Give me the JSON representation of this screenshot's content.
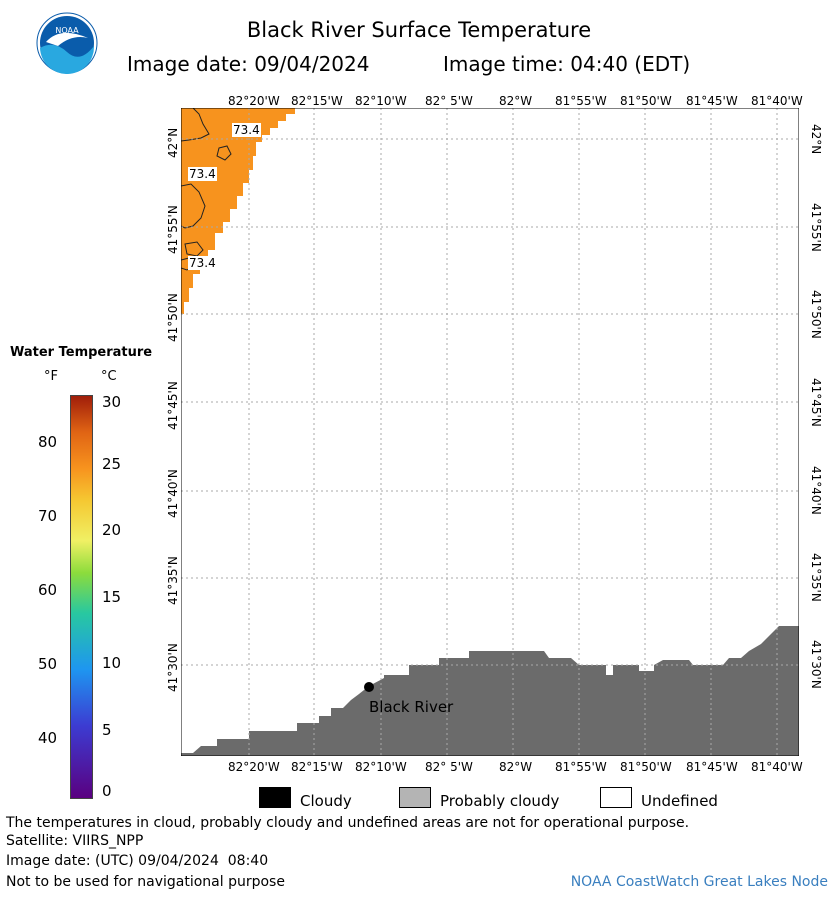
{
  "header": {
    "title": "Black River Surface Temperature",
    "image_date_label": "Image date: 09/04/2024",
    "image_time_label": "Image time: 04:40 (EDT)"
  },
  "logo": {
    "text": "NOAA",
    "colors": {
      "ring": "#ffffff",
      "sky": "#0a5cab",
      "water": "#29a8e0",
      "bird": "#ffffff"
    }
  },
  "map": {
    "lon_labels": [
      "82°20'W",
      "82°15'W",
      "82°10'W",
      "82° 5'W",
      "82°W",
      "81°55'W",
      "81°50'W",
      "81°45'W",
      "81°40'W"
    ],
    "lat_labels": [
      "42°N",
      "41°55'N",
      "41°50'N",
      "41°45'N",
      "41°40'N",
      "41°35'N",
      "41°30'N"
    ],
    "contour_labels": [
      "73.4",
      "73.4",
      "73.4"
    ],
    "place_label": "Black River",
    "colors": {
      "water_warm": "#f7931e",
      "land": "#6b6b6b",
      "grid": "#aaaaaa",
      "contour": "#222222"
    }
  },
  "legend": {
    "title": "Water Temperature",
    "unit_f": "°F",
    "unit_c": "°C",
    "f_ticks": [
      "80",
      "70",
      "60",
      "50",
      "40"
    ],
    "c_ticks": [
      "30",
      "25",
      "20",
      "15",
      "10",
      "5",
      "0"
    ],
    "scale_colors": [
      "#5a0080",
      "#3c3cd2",
      "#1e96f0",
      "#28c8a0",
      "#8cdc3c",
      "#f0f064",
      "#f5c832",
      "#f7931e",
      "#e06414",
      "#a01e0a"
    ]
  },
  "key": {
    "cloudy": "Cloudy",
    "probably_cloudy": "Probably cloudy",
    "undefined": "Undefined",
    "colors": {
      "cloudy": "#000000",
      "probably_cloudy": "#b4b4b4",
      "undefined": "#ffffff"
    }
  },
  "footer": {
    "disclaimer": "The temperatures in cloud, probably cloudy and undefined areas are not for operational purpose.",
    "satellite": "Satellite: VIIRS_NPP",
    "utc_date": "Image date: (UTC) 09/04/2024  08:40",
    "nav_warning": "Not to be used for navigational purpose",
    "credit": "NOAA CoastWatch Great Lakes Node"
  }
}
